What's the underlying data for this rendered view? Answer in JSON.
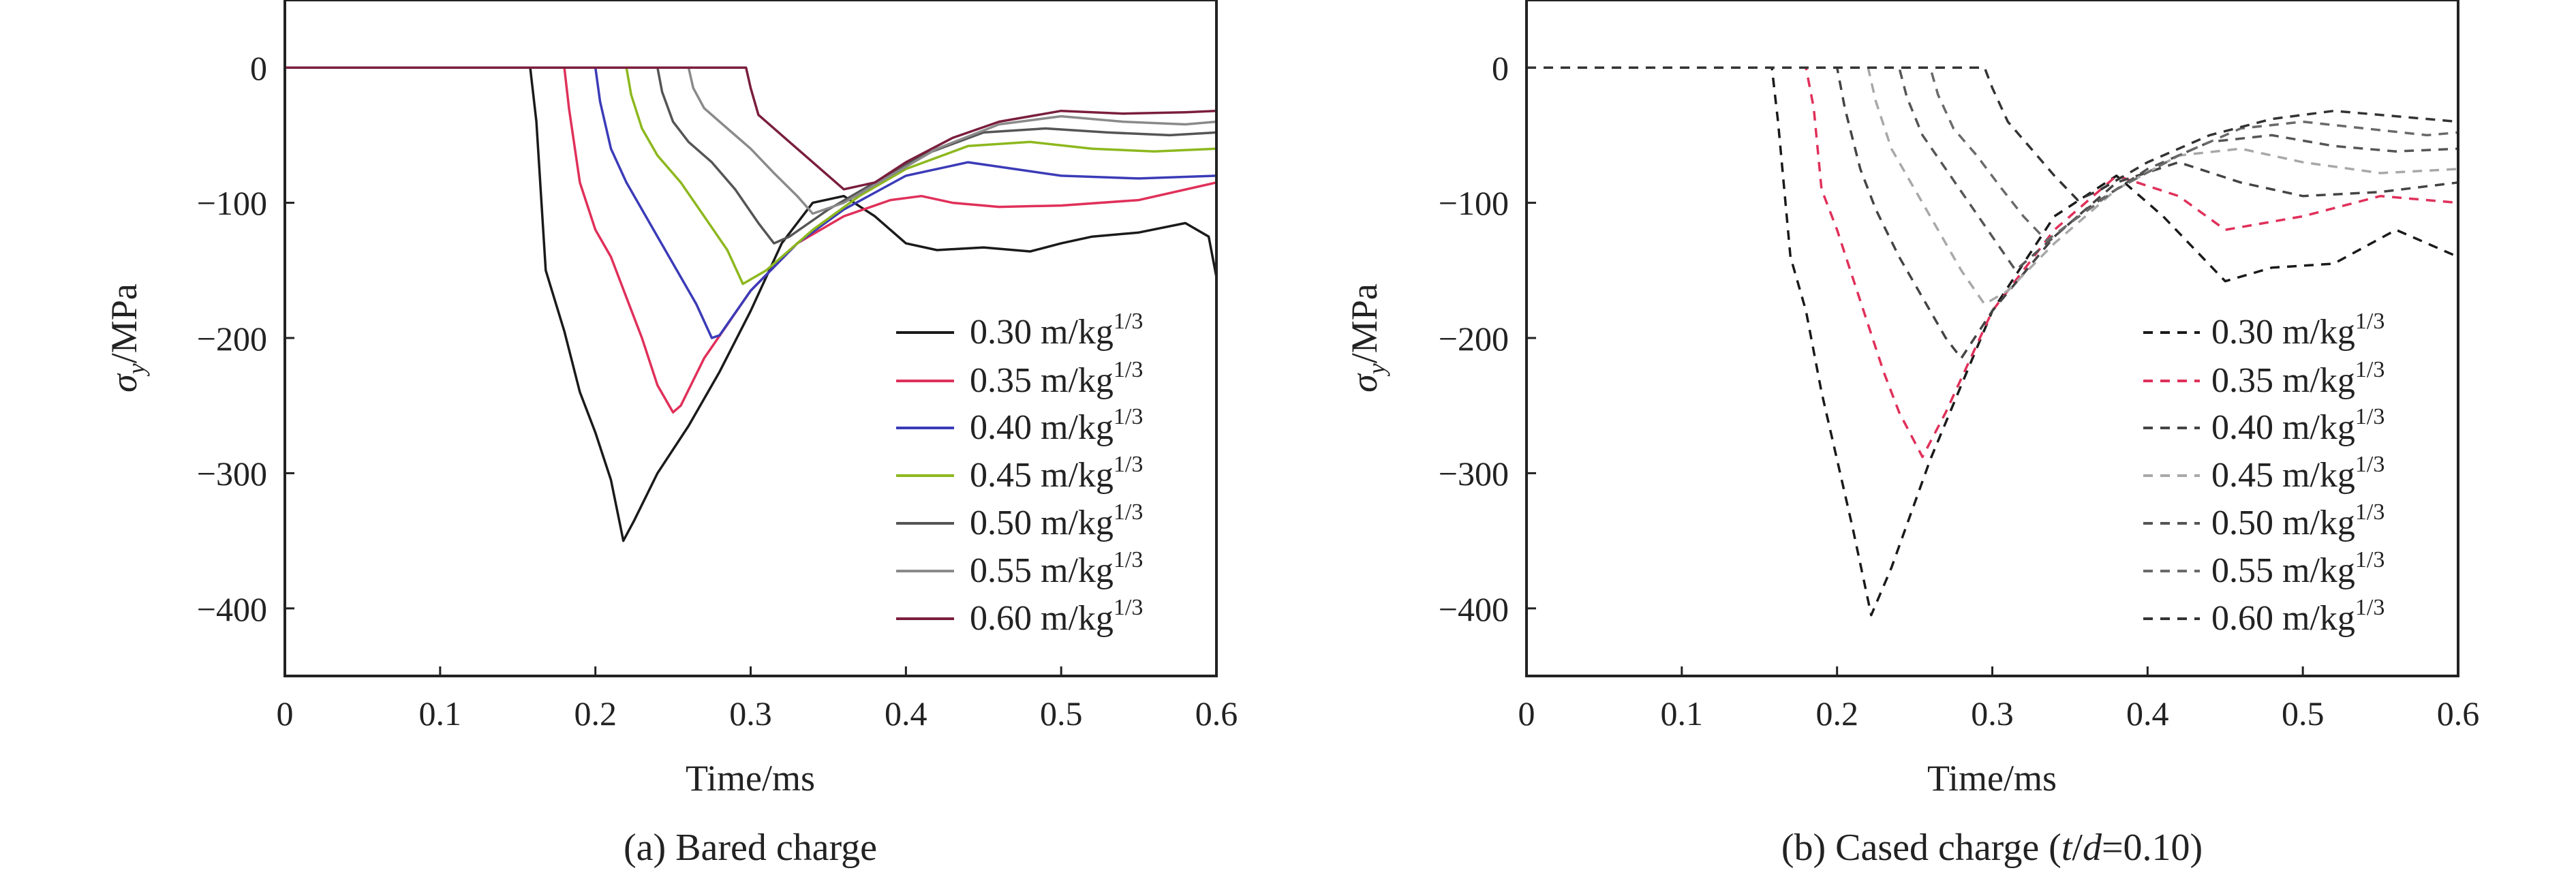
{
  "chart_data": [
    {
      "type": "line",
      "caption": "(a) Bared charge",
      "xlabel": "Time/ms",
      "ylabel_main": "σ",
      "ylabel_sub": "y",
      "ylabel_unit": "/MPa",
      "xlim": [
        0,
        0.6
      ],
      "ylim": [
        -450,
        50
      ],
      "xticks": [
        "0",
        "0.1",
        "0.2",
        "0.3",
        "0.4",
        "0.5",
        "0.6"
      ],
      "yticks": [
        "0",
        "−100",
        "−200",
        "−300",
        "−400"
      ],
      "line_style": "solid",
      "legend_position": "right",
      "series": [
        {
          "name": "0.30 m/kg",
          "sup": "1/3",
          "color": "#1a1a1a",
          "x": [
            0,
            0.158,
            0.162,
            0.168,
            0.18,
            0.19,
            0.2,
            0.21,
            0.218,
            0.225,
            0.24,
            0.26,
            0.28,
            0.3,
            0.32,
            0.34,
            0.36,
            0.38,
            0.4,
            0.42,
            0.45,
            0.48,
            0.5,
            0.52,
            0.55,
            0.58,
            0.595,
            0.6
          ],
          "y": [
            0,
            0,
            -40,
            -150,
            -195,
            -240,
            -270,
            -305,
            -350,
            -335,
            -300,
            -265,
            -225,
            -180,
            -130,
            -100,
            -95,
            -110,
            -130,
            -135,
            -133,
            -136,
            -130,
            -125,
            -122,
            -115,
            -125,
            -155
          ]
        },
        {
          "name": "0.35 m/kg",
          "sup": "1/3",
          "color": "#e0305a",
          "x": [
            0,
            0.18,
            0.183,
            0.19,
            0.2,
            0.21,
            0.22,
            0.23,
            0.24,
            0.25,
            0.255,
            0.27,
            0.3,
            0.33,
            0.36,
            0.39,
            0.41,
            0.43,
            0.46,
            0.5,
            0.55,
            0.6
          ],
          "y": [
            0,
            0,
            -30,
            -85,
            -120,
            -140,
            -170,
            -200,
            -235,
            -255,
            -250,
            -215,
            -165,
            -130,
            -110,
            -98,
            -95,
            -100,
            -103,
            -102,
            -98,
            -85
          ]
        },
        {
          "name": "0.40 m/kg",
          "sup": "1/3",
          "color": "#3b3bb8",
          "x": [
            0,
            0.2,
            0.203,
            0.21,
            0.22,
            0.235,
            0.25,
            0.265,
            0.275,
            0.28,
            0.3,
            0.33,
            0.36,
            0.4,
            0.44,
            0.47,
            0.5,
            0.55,
            0.6
          ],
          "y": [
            0,
            0,
            -25,
            -60,
            -85,
            -115,
            -145,
            -175,
            -200,
            -198,
            -165,
            -130,
            -105,
            -80,
            -70,
            -75,
            -80,
            -82,
            -80
          ]
        },
        {
          "name": "0.45 m/kg",
          "sup": "1/3",
          "color": "#8db81e",
          "x": [
            0,
            0.22,
            0.223,
            0.23,
            0.24,
            0.255,
            0.27,
            0.285,
            0.295,
            0.31,
            0.34,
            0.37,
            0.4,
            0.44,
            0.48,
            0.52,
            0.56,
            0.6
          ],
          "y": [
            0,
            0,
            -20,
            -45,
            -65,
            -85,
            -110,
            -135,
            -160,
            -150,
            -120,
            -95,
            -75,
            -58,
            -55,
            -60,
            -62,
            -60
          ]
        },
        {
          "name": "0.50 m/kg",
          "sup": "1/3",
          "color": "#555555",
          "x": [
            0,
            0.24,
            0.243,
            0.25,
            0.26,
            0.275,
            0.29,
            0.305,
            0.315,
            0.325,
            0.35,
            0.38,
            0.41,
            0.45,
            0.49,
            0.53,
            0.57,
            0.6
          ],
          "y": [
            0,
            0,
            -18,
            -40,
            -55,
            -70,
            -90,
            -115,
            -130,
            -125,
            -105,
            -85,
            -65,
            -48,
            -45,
            -48,
            -50,
            -48
          ]
        },
        {
          "name": "0.55 m/kg",
          "sup": "1/3",
          "color": "#8a8a8a",
          "x": [
            0,
            0.26,
            0.263,
            0.27,
            0.285,
            0.3,
            0.315,
            0.33,
            0.34,
            0.36,
            0.39,
            0.42,
            0.46,
            0.5,
            0.54,
            0.58,
            0.6
          ],
          "y": [
            0,
            0,
            -15,
            -30,
            -45,
            -60,
            -78,
            -95,
            -108,
            -100,
            -80,
            -60,
            -42,
            -36,
            -40,
            -42,
            -40
          ]
        },
        {
          "name": "0.60 m/kg",
          "sup": "1/3",
          "color": "#7a1e3c",
          "x": [
            0,
            0.297,
            0.3,
            0.305,
            0.32,
            0.34,
            0.36,
            0.38,
            0.4,
            0.43,
            0.46,
            0.5,
            0.54,
            0.58,
            0.6
          ],
          "y": [
            0,
            0,
            -15,
            -35,
            -50,
            -70,
            -90,
            -85,
            -70,
            -52,
            -40,
            -32,
            -34,
            -33,
            -32
          ]
        }
      ],
      "legend_items": [
        {
          "label": "0.30 m/kg",
          "sup": "1/3"
        },
        {
          "label": "0.35 m/kg",
          "sup": "1/3"
        },
        {
          "label": "0.40 m/kg",
          "sup": "1/3"
        },
        {
          "label": "0.45 m/kg",
          "sup": "1/3"
        },
        {
          "label": "0.50 m/kg",
          "sup": "1/3"
        },
        {
          "label": "0.55 m/kg",
          "sup": "1/3"
        },
        {
          "label": "0.60 m/kg",
          "sup": "1/3"
        }
      ]
    },
    {
      "type": "line",
      "caption_prefix": "(b) Cased charge (",
      "caption_t": "t",
      "caption_slash": "/",
      "caption_d": "d",
      "caption_suffix": "=0.10)",
      "xlabel": "Time/ms",
      "ylabel_main": "σ",
      "ylabel_sub": "y",
      "ylabel_unit": "/MPa",
      "xlim": [
        0,
        0.6
      ],
      "ylim": [
        -450,
        50
      ],
      "xticks": [
        "0",
        "0.1",
        "0.2",
        "0.3",
        "0.4",
        "0.5",
        "0.6"
      ],
      "yticks": [
        "0",
        "−100",
        "−200",
        "−300",
        "−400"
      ],
      "line_style": "dashed",
      "legend_position": "right",
      "series": [
        {
          "name": "0.30 m/kg",
          "sup": "1/3",
          "color": "#1a1a1a",
          "x": [
            0,
            0.158,
            0.162,
            0.17,
            0.18,
            0.19,
            0.2,
            0.21,
            0.222,
            0.235,
            0.26,
            0.3,
            0.34,
            0.38,
            0.41,
            0.45,
            0.48,
            0.52,
            0.56,
            0.6
          ],
          "y": [
            0,
            0,
            -40,
            -140,
            -180,
            -240,
            -290,
            -340,
            -405,
            -370,
            -290,
            -180,
            -110,
            -80,
            -110,
            -158,
            -148,
            -145,
            -120,
            -140
          ]
        },
        {
          "name": "0.35 m/kg",
          "sup": "1/3",
          "color": "#e0305a",
          "x": [
            0,
            0.18,
            0.185,
            0.19,
            0.2,
            0.21,
            0.22,
            0.23,
            0.24,
            0.255,
            0.27,
            0.3,
            0.34,
            0.38,
            0.42,
            0.45,
            0.5,
            0.55,
            0.6
          ],
          "y": [
            0,
            0,
            -30,
            -90,
            -120,
            -155,
            -190,
            -225,
            -255,
            -288,
            -255,
            -180,
            -120,
            -80,
            -95,
            -120,
            -110,
            -95,
            -100
          ]
        },
        {
          "name": "0.40 m/kg",
          "sup": "1/3",
          "color": "#444444",
          "x": [
            0,
            0.2,
            0.205,
            0.215,
            0.225,
            0.24,
            0.255,
            0.27,
            0.28,
            0.3,
            0.34,
            0.38,
            0.42,
            0.46,
            0.5,
            0.55,
            0.6
          ],
          "y": [
            0,
            0,
            -30,
            -75,
            -105,
            -140,
            -170,
            -200,
            -215,
            -180,
            -125,
            -85,
            -70,
            -85,
            -95,
            -92,
            -85
          ]
        },
        {
          "name": "0.45 m/kg",
          "sup": "1/3",
          "color": "#a8a8a8",
          "x": [
            0,
            0.22,
            0.225,
            0.235,
            0.25,
            0.265,
            0.28,
            0.295,
            0.31,
            0.34,
            0.38,
            0.42,
            0.46,
            0.5,
            0.55,
            0.6
          ],
          "y": [
            0,
            0,
            -25,
            -60,
            -90,
            -120,
            -150,
            -175,
            -165,
            -130,
            -90,
            -65,
            -60,
            -70,
            -78,
            -75
          ]
        },
        {
          "name": "0.50 m/kg",
          "sup": "1/3",
          "color": "#555555",
          "x": [
            0,
            0.24,
            0.245,
            0.255,
            0.27,
            0.285,
            0.3,
            0.315,
            0.33,
            0.36,
            0.4,
            0.44,
            0.48,
            0.52,
            0.56,
            0.6
          ],
          "y": [
            0,
            0,
            -22,
            -50,
            -75,
            -100,
            -125,
            -150,
            -135,
            -105,
            -75,
            -55,
            -50,
            -58,
            -62,
            -60
          ]
        },
        {
          "name": "0.55 m/kg",
          "sup": "1/3",
          "color": "#6a6a6a",
          "x": [
            0,
            0.26,
            0.265,
            0.275,
            0.29,
            0.305,
            0.32,
            0.335,
            0.35,
            0.38,
            0.42,
            0.46,
            0.5,
            0.54,
            0.58,
            0.6
          ],
          "y": [
            0,
            0,
            -20,
            -45,
            -65,
            -88,
            -110,
            -128,
            -115,
            -90,
            -65,
            -45,
            -40,
            -45,
            -50,
            -48
          ]
        },
        {
          "name": "0.60 m/kg",
          "sup": "1/3",
          "color": "#333333",
          "x": [
            0,
            0.295,
            0.3,
            0.31,
            0.325,
            0.34,
            0.355,
            0.37,
            0.4,
            0.44,
            0.48,
            0.52,
            0.56,
            0.6
          ],
          "y": [
            0,
            0,
            -15,
            -40,
            -60,
            -80,
            -98,
            -90,
            -70,
            -50,
            -38,
            -32,
            -36,
            -40
          ]
        }
      ],
      "legend_items": [
        {
          "label": "0.30 m/kg",
          "sup": "1/3"
        },
        {
          "label": "0.35 m/kg",
          "sup": "1/3"
        },
        {
          "label": "0.40 m/kg",
          "sup": "1/3"
        },
        {
          "label": "0.45 m/kg",
          "sup": "1/3"
        },
        {
          "label": "0.50 m/kg",
          "sup": "1/3"
        },
        {
          "label": "0.55 m/kg",
          "sup": "1/3"
        },
        {
          "label": "0.60 m/kg",
          "sup": "1/3"
        }
      ]
    }
  ]
}
